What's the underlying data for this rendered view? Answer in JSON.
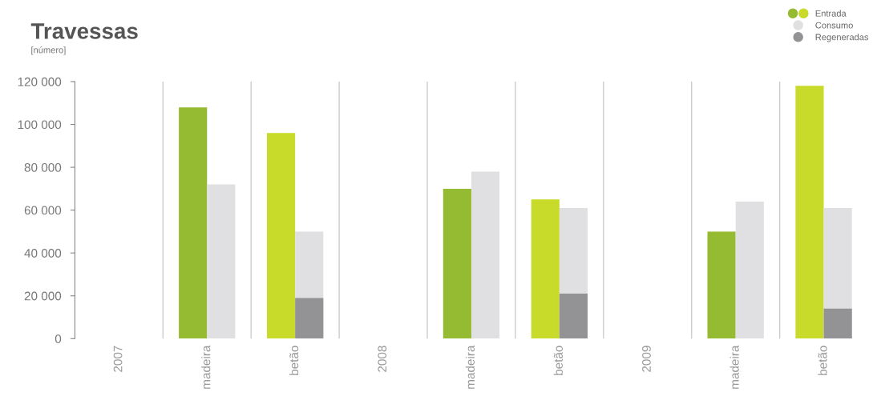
{
  "chart_data": {
    "type": "bar",
    "title": "Travessas",
    "subtitle": "[número]",
    "categories": [
      "2007",
      "madeira",
      "betão",
      "2008",
      "madeira",
      "betão",
      "2009",
      "madeira",
      "betão"
    ],
    "series": [
      {
        "name": "Entrada",
        "colors": [
          null,
          "#95bb32",
          "#c8da2a",
          null,
          "#95bb32",
          "#c8da2a",
          null,
          "#95bb32",
          "#c8da2a"
        ],
        "values": [
          null,
          108000,
          96000,
          null,
          70000,
          65000,
          null,
          50000,
          118000
        ]
      },
      {
        "name": "Consumo",
        "color": "#e0e0e2",
        "values": [
          null,
          72000,
          50000,
          null,
          78000,
          61000,
          null,
          64000,
          61000
        ]
      },
      {
        "name": "Regeneradas",
        "color": "#939396",
        "values": [
          null,
          null,
          19000,
          null,
          null,
          21000,
          null,
          null,
          14000
        ]
      }
    ],
    "ylim": [
      0,
      120000
    ],
    "yticks": [
      0,
      {
        "value": 20000,
        "label": "20 000"
      },
      {
        "value": 40000,
        "label": "40 000"
      },
      {
        "value": 60000,
        "label": "60 000"
      },
      {
        "value": 80000,
        "label": "80 000"
      },
      {
        "value": 100000,
        "label": "100 000"
      },
      {
        "value": 120000,
        "label": "120 000"
      }
    ],
    "grid": "x",
    "legend": "top right"
  }
}
